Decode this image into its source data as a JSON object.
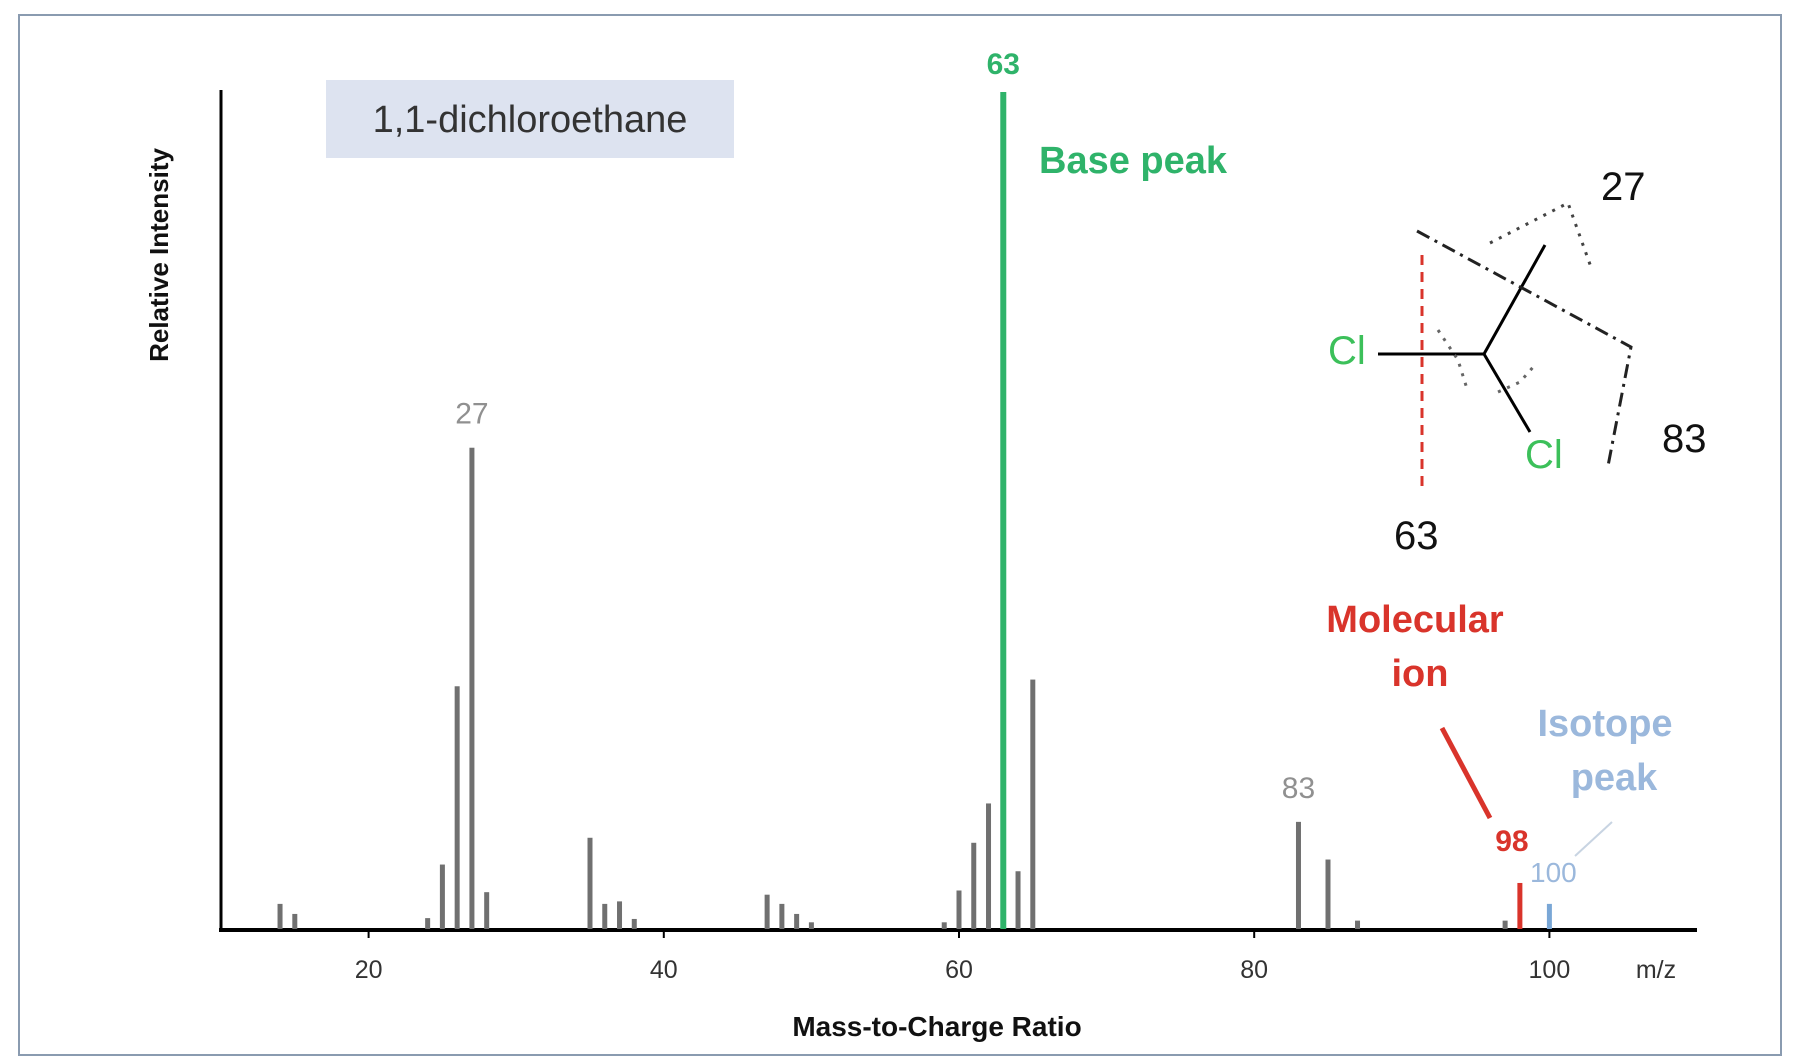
{
  "chart_data": {
    "type": "bar",
    "title": "1,1-dichloroethane",
    "xlabel": "Mass-to-Charge Ratio",
    "ylabel": "Relative Intensity",
    "x_unit_label": "m/z",
    "xlim": [
      10,
      110
    ],
    "ylim": [
      0,
      100
    ],
    "x_ticks": [
      20,
      40,
      60,
      80,
      100
    ],
    "grid": false,
    "peaks": [
      {
        "mz": 14,
        "intensity": 3.0
      },
      {
        "mz": 15,
        "intensity": 1.8
      },
      {
        "mz": 24,
        "intensity": 1.3
      },
      {
        "mz": 25,
        "intensity": 7.7
      },
      {
        "mz": 26,
        "intensity": 29
      },
      {
        "mz": 27,
        "intensity": 57.5
      },
      {
        "mz": 28,
        "intensity": 4.4
      },
      {
        "mz": 35,
        "intensity": 10.9
      },
      {
        "mz": 36,
        "intensity": 3.0
      },
      {
        "mz": 37,
        "intensity": 3.3
      },
      {
        "mz": 38,
        "intensity": 1.2
      },
      {
        "mz": 47,
        "intensity": 4.1
      },
      {
        "mz": 48,
        "intensity": 3.0
      },
      {
        "mz": 49,
        "intensity": 1.8
      },
      {
        "mz": 50,
        "intensity": 0.8
      },
      {
        "mz": 59,
        "intensity": 0.8
      },
      {
        "mz": 60,
        "intensity": 4.6
      },
      {
        "mz": 61,
        "intensity": 10.3
      },
      {
        "mz": 62,
        "intensity": 15.0
      },
      {
        "mz": 63,
        "intensity": 100,
        "color": "#2fb36a"
      },
      {
        "mz": 64,
        "intensity": 6.9
      },
      {
        "mz": 65,
        "intensity": 29.8
      },
      {
        "mz": 83,
        "intensity": 12.8
      },
      {
        "mz": 85,
        "intensity": 8.3
      },
      {
        "mz": 87,
        "intensity": 1.0
      },
      {
        "mz": 97,
        "intensity": 1.0
      },
      {
        "mz": 98,
        "intensity": 5.5,
        "color": "#d9342b"
      },
      {
        "mz": 100,
        "intensity": 3.0,
        "color": "#7aa7d6"
      }
    ],
    "peak_labels": [
      {
        "mz": 27,
        "text": "27",
        "color": "#909090"
      },
      {
        "mz": 63,
        "text": "63",
        "color": "#2fb36a"
      },
      {
        "mz": 83,
        "text": "83",
        "color": "#909090"
      },
      {
        "mz": 98,
        "text": "98",
        "color": "#d9342b"
      },
      {
        "mz": 100,
        "text": "100",
        "color": "#9bb8dc"
      }
    ],
    "annotations": {
      "base_peak": "Base peak",
      "molecular_ion_line1": "Molecular",
      "molecular_ion_line2": "ion",
      "isotope_line1": "Isotope",
      "isotope_line2": "peak"
    },
    "colors": {
      "bar": "#707070",
      "base_peak": "#2fb36a",
      "molecular_ion": "#d9342b",
      "isotope": "#9bb8dc",
      "title_box": "#dde3f0",
      "axis": "#000000"
    }
  },
  "structure": {
    "atoms": [
      "Cl",
      "Cl"
    ],
    "fragment_labels": [
      "27",
      "63",
      "83"
    ],
    "atom_color": "#3cc05a"
  }
}
